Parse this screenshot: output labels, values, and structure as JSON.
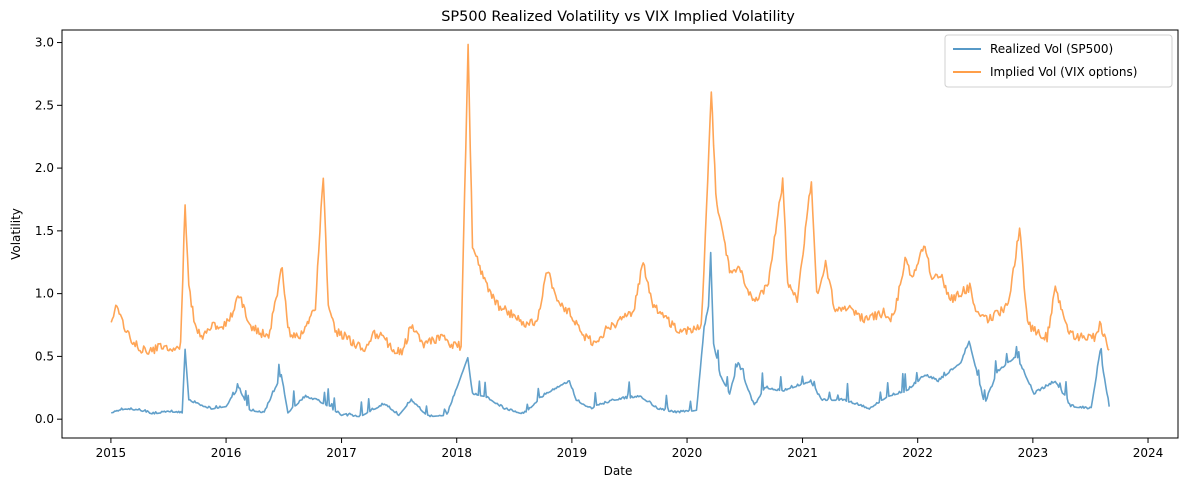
{
  "chart_data": {
    "type": "line",
    "title": "SP500 Realized Volatility vs VIX Implied Volatility",
    "xlabel": "Date",
    "ylabel": "Volatility",
    "xlim": [
      "2014-07-30",
      "2024-04-05"
    ],
    "ylim": [
      -0.15,
      3.1
    ],
    "x_ticks": [
      "2015",
      "2016",
      "2017",
      "2018",
      "2019",
      "2020",
      "2021",
      "2022",
      "2023",
      "2024"
    ],
    "y_ticks": [
      "0.0",
      "0.5",
      "1.0",
      "1.5",
      "2.0",
      "2.5",
      "3.0"
    ],
    "grid": false,
    "legend_position": "top-right",
    "series": [
      {
        "name": "Realized Vol (SP500)",
        "color": "#1f77b4",
        "x": [
          "2015-01-02",
          "2015-02-15",
          "2015-04-01",
          "2015-05-15",
          "2015-07-01",
          "2015-08-15",
          "2015-08-24",
          "2015-09-05",
          "2015-10-01",
          "2015-11-15",
          "2016-01-01",
          "2016-02-10",
          "2016-03-15",
          "2016-05-01",
          "2016-06-24",
          "2016-07-15",
          "2016-09-09",
          "2016-11-08",
          "2017-01-01",
          "2017-03-01",
          "2017-05-17",
          "2017-07-01",
          "2017-08-10",
          "2017-10-01",
          "2017-12-01",
          "2018-02-05",
          "2018-02-20",
          "2018-04-01",
          "2018-06-01",
          "2018-08-01",
          "2018-10-10",
          "2018-12-24",
          "2019-01-15",
          "2019-03-01",
          "2019-05-13",
          "2019-08-05",
          "2019-10-01",
          "2019-12-01",
          "2020-01-31",
          "2020-02-24",
          "2020-03-09",
          "2020-03-16",
          "2020-03-25",
          "2020-04-15",
          "2020-05-15",
          "2020-06-11",
          "2020-08-01",
          "2020-09-03",
          "2020-10-28",
          "2021-01-27",
          "2021-03-01",
          "2021-05-12",
          "2021-08-01",
          "2021-09-28",
          "2021-11-26",
          "2022-01-24",
          "2022-03-07",
          "2022-05-18",
          "2022-06-13",
          "2022-08-01",
          "2022-09-13",
          "2022-11-10",
          "2023-01-05",
          "2023-03-13",
          "2023-05-01",
          "2023-07-05",
          "2023-08-02",
          "2023-08-31"
        ],
        "y": [
          0.05,
          0.08,
          0.07,
          0.04,
          0.06,
          0.05,
          0.55,
          0.15,
          0.12,
          0.08,
          0.1,
          0.25,
          0.07,
          0.05,
          0.35,
          0.05,
          0.18,
          0.12,
          0.03,
          0.02,
          0.12,
          0.03,
          0.15,
          0.02,
          0.03,
          0.49,
          0.2,
          0.18,
          0.08,
          0.04,
          0.2,
          0.3,
          0.15,
          0.08,
          0.15,
          0.18,
          0.08,
          0.05,
          0.07,
          0.72,
          0.9,
          1.32,
          0.6,
          0.35,
          0.2,
          0.45,
          0.1,
          0.25,
          0.22,
          0.3,
          0.15,
          0.15,
          0.08,
          0.18,
          0.22,
          0.35,
          0.3,
          0.45,
          0.62,
          0.12,
          0.38,
          0.5,
          0.2,
          0.3,
          0.1,
          0.08,
          0.53,
          0.1
        ]
      },
      {
        "name": "Implied Vol (VIX options)",
        "color": "#ff7f0e",
        "x": [
          "2015-01-02",
          "2015-01-20",
          "2015-02-15",
          "2015-03-15",
          "2015-04-15",
          "2015-05-15",
          "2015-06-15",
          "2015-07-15",
          "2015-08-10",
          "2015-08-24",
          "2015-09-05",
          "2015-09-25",
          "2015-10-15",
          "2015-11-15",
          "2015-12-15",
          "2016-01-20",
          "2016-02-11",
          "2016-03-15",
          "2016-04-15",
          "2016-05-15",
          "2016-06-27",
          "2016-07-15",
          "2016-08-15",
          "2016-09-15",
          "2016-10-10",
          "2016-11-04",
          "2016-11-20",
          "2016-12-15",
          "2017-01-15",
          "2017-02-15",
          "2017-03-15",
          "2017-04-15",
          "2017-05-17",
          "2017-06-15",
          "2017-07-15",
          "2017-08-10",
          "2017-09-15",
          "2017-10-15",
          "2017-11-15",
          "2017-12-15",
          "2018-01-15",
          "2018-02-06",
          "2018-02-20",
          "2018-03-15",
          "2018-04-15",
          "2018-05-15",
          "2018-06-15",
          "2018-07-15",
          "2018-08-15",
          "2018-09-15",
          "2018-10-15",
          "2018-11-15",
          "2018-12-24",
          "2019-01-15",
          "2019-02-15",
          "2019-03-15",
          "2019-04-15",
          "2019-05-15",
          "2019-06-15",
          "2019-07-15",
          "2019-08-15",
          "2019-09-15",
          "2019-10-15",
          "2019-11-15",
          "2019-12-15",
          "2020-01-15",
          "2020-02-15",
          "2020-02-28",
          "2020-03-18",
          "2020-04-01",
          "2020-04-20",
          "2020-05-15",
          "2020-06-15",
          "2020-07-15",
          "2020-08-15",
          "2020-09-15",
          "2020-10-30",
          "2020-11-15",
          "2020-12-15",
          "2021-01-29",
          "2021-02-15",
          "2021-03-15",
          "2021-04-15",
          "2021-05-15",
          "2021-06-15",
          "2021-07-15",
          "2021-08-15",
          "2021-09-15",
          "2021-10-15",
          "2021-11-26",
          "2021-12-15",
          "2022-01-24",
          "2022-02-15",
          "2022-03-15",
          "2022-04-15",
          "2022-05-15",
          "2022-06-15",
          "2022-07-15",
          "2022-08-15",
          "2022-09-15",
          "2022-10-15",
          "2022-11-20",
          "2022-12-15",
          "2023-01-15",
          "2023-02-15",
          "2023-03-13",
          "2023-04-15",
          "2023-05-15",
          "2023-06-15",
          "2023-07-15",
          "2023-08-01",
          "2023-08-31"
        ],
        "y": [
          0.8,
          0.92,
          0.72,
          0.6,
          0.55,
          0.55,
          0.58,
          0.52,
          0.6,
          1.69,
          1.05,
          0.75,
          0.65,
          0.75,
          0.7,
          0.85,
          1.0,
          0.75,
          0.7,
          0.65,
          1.23,
          0.7,
          0.65,
          0.75,
          0.9,
          1.95,
          0.9,
          0.7,
          0.65,
          0.6,
          0.55,
          0.68,
          0.65,
          0.52,
          0.55,
          0.75,
          0.6,
          0.62,
          0.65,
          0.6,
          0.58,
          2.95,
          1.4,
          1.2,
          1.0,
          0.9,
          0.85,
          0.8,
          0.75,
          0.8,
          1.2,
          0.95,
          0.85,
          0.75,
          0.65,
          0.6,
          0.7,
          0.75,
          0.8,
          0.85,
          1.25,
          0.9,
          0.85,
          0.75,
          0.7,
          0.72,
          0.75,
          1.45,
          2.62,
          1.8,
          1.5,
          1.2,
          1.2,
          1.0,
          0.95,
          1.1,
          1.9,
          1.1,
          0.95,
          1.9,
          1.0,
          1.25,
          0.85,
          0.9,
          0.85,
          0.8,
          0.82,
          0.85,
          0.8,
          1.3,
          1.1,
          1.4,
          1.1,
          1.15,
          0.95,
          1.0,
          1.05,
          0.8,
          0.8,
          0.85,
          0.9,
          1.52,
          0.75,
          0.7,
          0.65,
          1.05,
          0.75,
          0.65,
          0.65,
          0.65,
          0.75,
          0.55
        ]
      }
    ]
  }
}
